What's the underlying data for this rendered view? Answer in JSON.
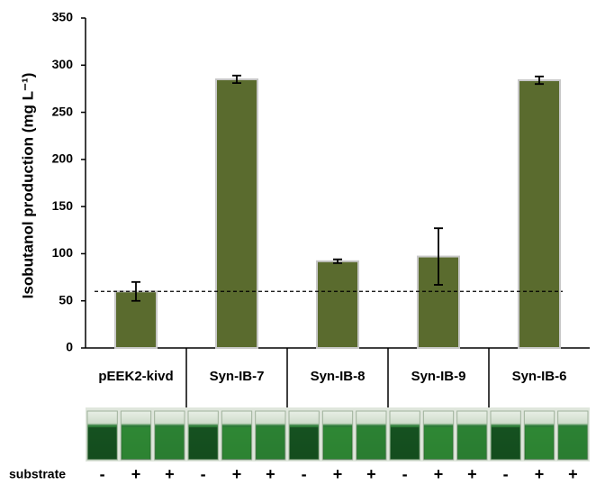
{
  "chart_data": {
    "type": "bar",
    "y_label": "Isobutanol  production (mg L⁻¹)",
    "categories": [
      "pEEK2-kivd",
      "Syn-IB-7",
      "Syn-IB-8",
      "Syn-IB-9",
      "Syn-IB-6"
    ],
    "values": [
      60,
      285,
      92,
      97,
      284
    ],
    "errors": [
      10,
      4,
      2,
      30,
      4
    ],
    "color": "#5a6b2e",
    "reference_line": 60,
    "ylim": [
      0,
      350
    ],
    "yticks": [
      0,
      50,
      100,
      150,
      200,
      250,
      300,
      350
    ],
    "row_label": "substrate",
    "row_values": [
      "-",
      "+",
      "+",
      "-",
      "+",
      "+",
      "-",
      "+",
      "+",
      "-",
      "+",
      "+",
      "-",
      "+",
      "+"
    ]
  }
}
